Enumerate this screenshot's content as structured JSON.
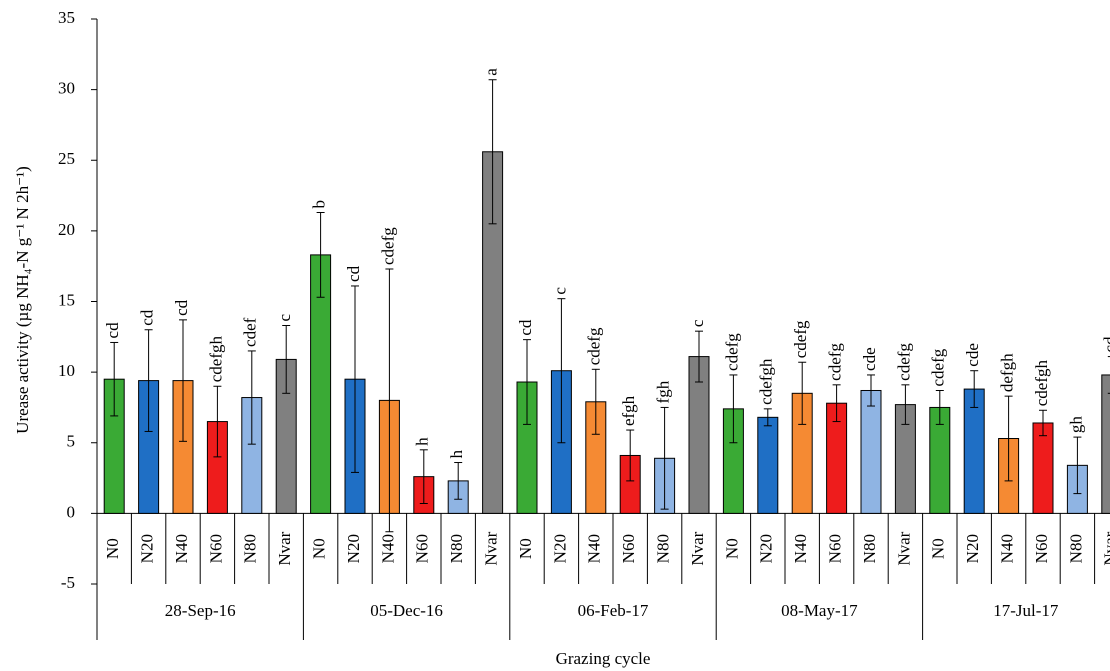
{
  "chart_data": {
    "type": "bar",
    "xlabel": "Grazing cycle",
    "ylabel": "Urease activity (µg NH₄-N g⁻¹ N 2h⁻¹)",
    "categories": [
      "28-Sep-16",
      "05-Dec-16",
      "06-Feb-17",
      "08-May-17",
      "17-Jul-17"
    ],
    "ylim": [
      -5,
      35
    ],
    "yticks": [
      -5,
      0,
      5,
      10,
      15,
      20,
      25,
      30,
      35
    ],
    "series": [
      {
        "name": "N0",
        "color": "#3aaa35",
        "values": [
          9.5,
          18.3,
          9.3,
          7.4,
          7.5
        ],
        "errors": [
          2.6,
          3.0,
          3.0,
          2.4,
          1.2
        ],
        "annotations": [
          "cd",
          "b",
          "cd",
          "cdefg",
          "cdefg"
        ]
      },
      {
        "name": "N20",
        "color": "#1f6fc5",
        "values": [
          9.4,
          9.5,
          10.1,
          6.8,
          8.8
        ],
        "errors": [
          3.6,
          6.6,
          5.1,
          0.6,
          1.3
        ],
        "annotations": [
          "cd",
          "cd",
          "c",
          "cdefgh",
          "cde"
        ]
      },
      {
        "name": "N40",
        "color": "#f58a33",
        "values": [
          9.4,
          8.0,
          7.9,
          8.5,
          5.3
        ],
        "errors": [
          4.3,
          9.3,
          2.3,
          2.2,
          3.0
        ],
        "annotations": [
          "cd",
          "cdefg",
          "cdefg",
          "cdefg",
          "defgh"
        ]
      },
      {
        "name": "N60",
        "color": "#ee1c1c",
        "values": [
          6.5,
          2.6,
          4.1,
          7.8,
          6.4
        ],
        "errors": [
          2.5,
          1.9,
          1.8,
          1.3,
          0.9
        ],
        "annotations": [
          "cdefgh",
          "h",
          "efgh",
          "cdefg",
          "cdefgh"
        ]
      },
      {
        "name": "N80",
        "color": "#8fb4e3",
        "values": [
          8.2,
          2.3,
          3.9,
          8.7,
          3.4
        ],
        "errors": [
          3.3,
          1.3,
          3.6,
          1.1,
          2.0
        ],
        "annotations": [
          "cdef",
          "h",
          "fgh",
          "cde",
          "gh"
        ]
      },
      {
        "name": "Nvar",
        "color": "#808080",
        "values": [
          10.9,
          25.6,
          11.1,
          7.7,
          9.8
        ],
        "errors": [
          2.4,
          5.1,
          1.8,
          1.4,
          1.3
        ],
        "annotations": [
          "c",
          "a",
          "c",
          "cdefg",
          "cd"
        ]
      }
    ]
  }
}
